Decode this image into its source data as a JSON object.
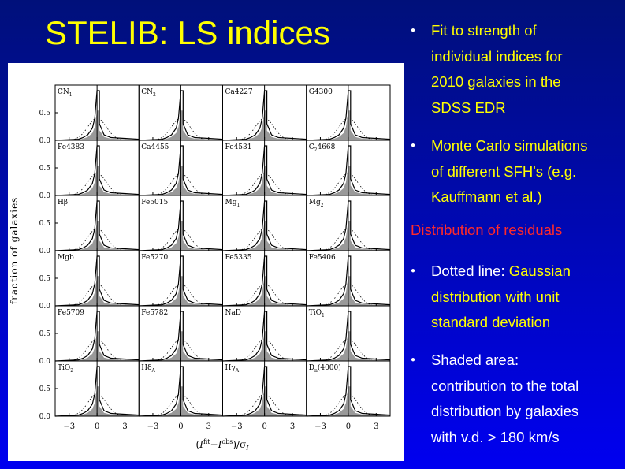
{
  "title": "STELIB: LS indices",
  "figure": {
    "y_label": "fraction of galaxies",
    "x_label": {
      "open": "(",
      "a": "I",
      "a_sup": "fit",
      "minus": "−",
      "b": "I",
      "b_sup": "obs",
      "close": ")/σ",
      "sub": "I"
    },
    "xlim": [
      -4.5,
      4.5
    ],
    "xticks": [
      {
        "value": -3,
        "label": "−3"
      },
      0,
      3
    ],
    "ylim": [
      0,
      1
    ],
    "yticks": [
      {
        "value": 0,
        "label": "0.0"
      },
      {
        "value": 0.5,
        "label": "0.5"
      }
    ],
    "panels": [
      {
        "text": "CN",
        "sub": "1"
      },
      {
        "text": "CN",
        "sub": "2"
      },
      {
        "text": "Ca4227"
      },
      {
        "text": "G4300"
      },
      {
        "text": "Fe4383"
      },
      {
        "text": "Ca4455"
      },
      {
        "text": "Fe4531"
      },
      {
        "text": "C",
        "sub": "2",
        "after": "4668"
      },
      {
        "text": "Hβ"
      },
      {
        "text": "Fe5015"
      },
      {
        "text": "Mg",
        "sub": "1"
      },
      {
        "text": "Mg",
        "sub": "2"
      },
      {
        "text": "Mgb"
      },
      {
        "text": "Fe5270"
      },
      {
        "text": "Fe5335"
      },
      {
        "text": "Fe5406"
      },
      {
        "text": "Fe5709"
      },
      {
        "text": "Fe5782"
      },
      {
        "text": "NaD"
      },
      {
        "text": "TiO",
        "sub": "1"
      },
      {
        "text": "TiO",
        "sub": "2"
      },
      {
        "text": "Hδ",
        "sub": "A"
      },
      {
        "text": "Hγ",
        "sub": "A"
      },
      {
        "text": "D",
        "sub": "n",
        "after": "(4000)"
      }
    ]
  },
  "bullets": [
    {
      "color": "#ffff00",
      "lines": [
        "Fit to strength of",
        "individual indices for",
        "2010 galaxies in the",
        "SDSS EDR"
      ]
    },
    {
      "color": "#ffff00",
      "lines": [
        "Monte Carlo simulations",
        "of different SFH's (e.g.",
        "Kauffmann et al.)"
      ]
    }
  ],
  "heading": "Distribution of residuals",
  "bullets2": [
    {
      "lead": "Dotted line: ",
      "lead_color": "#ffffff",
      "color": "#ffff00",
      "lines": [
        "Gaussian",
        "distribution with unit",
        "standard deviation"
      ]
    },
    {
      "color": "#ffffff",
      "lines": [
        "Shaded area:",
        "contribution to the total",
        "distribution by galaxies",
        "with v.d. > 180 km/s"
      ]
    }
  ]
}
